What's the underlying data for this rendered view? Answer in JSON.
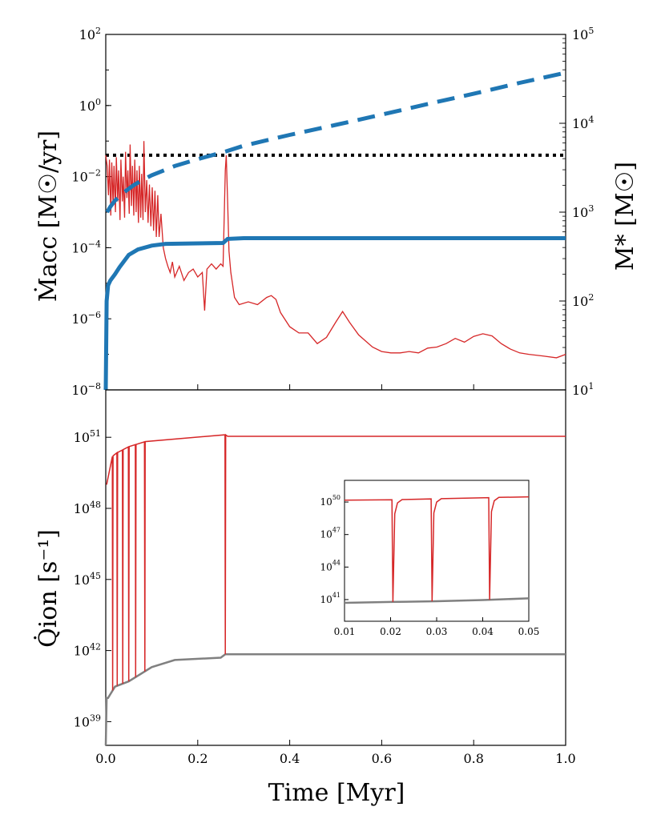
{
  "chart_data": [
    {
      "type": "line",
      "panel": "top",
      "ylabel": "Ṁacc [M☉/yr]",
      "y2label": "M* [M☉]",
      "xlim": [
        0,
        1.0
      ],
      "ylim": [
        1e-08,
        100
      ],
      "yscale": "log",
      "y2lim": [
        10,
        100000
      ],
      "y2scale": "log",
      "x_ticks": [
        "0.0",
        "0.2",
        "0.4",
        "0.6",
        "0.8",
        "1.0"
      ],
      "y_ticks": [
        {
          "base": "10",
          "exp": "−8"
        },
        {
          "base": "10",
          "exp": "−6"
        },
        {
          "base": "10",
          "exp": "−4"
        },
        {
          "base": "10",
          "exp": "−2"
        },
        {
          "base": "10",
          "exp": "0"
        },
        {
          "base": "10",
          "exp": "2"
        }
      ],
      "y2_ticks": [
        {
          "base": "10",
          "exp": "1"
        },
        {
          "base": "10",
          "exp": "2"
        },
        {
          "base": "10",
          "exp": "3"
        },
        {
          "base": "10",
          "exp": "4"
        },
        {
          "base": "10",
          "exp": "5"
        }
      ],
      "colors": {
        "accretion": "#d62728",
        "mass": "#1f77b4",
        "threshold": "#000000"
      },
      "threshold": 0.04,
      "accretion_rate": [
        [
          0.0,
          0.04
        ],
        [
          0.003,
          0.02
        ],
        [
          0.006,
          0.003
        ],
        [
          0.008,
          0.03
        ],
        [
          0.011,
          0.0008
        ],
        [
          0.013,
          0.025
        ],
        [
          0.016,
          0.0015
        ],
        [
          0.018,
          0.02
        ],
        [
          0.021,
          0.001
        ],
        [
          0.023,
          0.035
        ],
        [
          0.026,
          0.002
        ],
        [
          0.028,
          0.015
        ],
        [
          0.031,
          0.0006
        ],
        [
          0.033,
          0.03
        ],
        [
          0.036,
          0.002
        ],
        [
          0.038,
          0.01
        ],
        [
          0.041,
          0.0007
        ],
        [
          0.043,
          0.05
        ],
        [
          0.046,
          0.0025
        ],
        [
          0.048,
          0.015
        ],
        [
          0.051,
          0.0009
        ],
        [
          0.053,
          0.08
        ],
        [
          0.056,
          0.0015
        ],
        [
          0.058,
          0.02
        ],
        [
          0.061,
          0.0008
        ],
        [
          0.063,
          0.03
        ],
        [
          0.066,
          0.001
        ],
        [
          0.068,
          0.015
        ],
        [
          0.071,
          0.0005
        ],
        [
          0.073,
          0.02
        ],
        [
          0.076,
          0.0007
        ],
        [
          0.078,
          0.012
        ],
        [
          0.081,
          0.0006
        ],
        [
          0.083,
          0.1
        ],
        [
          0.086,
          0.001
        ],
        [
          0.089,
          0.008
        ],
        [
          0.092,
          0.0005
        ],
        [
          0.095,
          0.006
        ],
        [
          0.098,
          0.0004
        ],
        [
          0.101,
          0.005
        ],
        [
          0.104,
          0.0003
        ],
        [
          0.107,
          0.004
        ],
        [
          0.11,
          0.0002
        ],
        [
          0.113,
          0.003
        ],
        [
          0.116,
          0.0002
        ],
        [
          0.12,
          0.0009
        ],
        [
          0.125,
          0.0001
        ],
        [
          0.13,
          5e-05
        ],
        [
          0.135,
          3e-05
        ],
        [
          0.14,
          2e-05
        ],
        [
          0.145,
          4e-05
        ],
        [
          0.15,
          1.5e-05
        ],
        [
          0.16,
          3e-05
        ],
        [
          0.17,
          1.2e-05
        ],
        [
          0.18,
          2e-05
        ],
        [
          0.19,
          2.5e-05
        ],
        [
          0.2,
          1.5e-05
        ],
        [
          0.21,
          2e-05
        ],
        [
          0.215,
          1.7e-06
        ],
        [
          0.22,
          2.5e-05
        ],
        [
          0.23,
          3.5e-05
        ],
        [
          0.24,
          2.5e-05
        ],
        [
          0.25,
          3.5e-05
        ],
        [
          0.255,
          3e-05
        ],
        [
          0.26,
          0.015
        ],
        [
          0.262,
          0.04
        ],
        [
          0.265,
          0.002
        ],
        [
          0.268,
          8e-05
        ],
        [
          0.272,
          2e-05
        ],
        [
          0.28,
          4e-06
        ],
        [
          0.29,
          2.5e-06
        ],
        [
          0.31,
          3e-06
        ],
        [
          0.33,
          2.5e-06
        ],
        [
          0.35,
          4e-06
        ],
        [
          0.36,
          4.5e-06
        ],
        [
          0.37,
          3.5e-06
        ],
        [
          0.38,
          1.5e-06
        ],
        [
          0.4,
          6e-07
        ],
        [
          0.42,
          4e-07
        ],
        [
          0.44,
          4e-07
        ],
        [
          0.46,
          2e-07
        ],
        [
          0.48,
          3e-07
        ],
        [
          0.5,
          8e-07
        ],
        [
          0.515,
          1.6e-06
        ],
        [
          0.53,
          8e-07
        ],
        [
          0.55,
          3.5e-07
        ],
        [
          0.58,
          1.6e-07
        ],
        [
          0.6,
          1.2e-07
        ],
        [
          0.62,
          1.1e-07
        ],
        [
          0.64,
          1.1e-07
        ],
        [
          0.66,
          1.2e-07
        ],
        [
          0.68,
          1.1e-07
        ],
        [
          0.7,
          1.5e-07
        ],
        [
          0.72,
          1.6e-07
        ],
        [
          0.74,
          2e-07
        ],
        [
          0.76,
          2.8e-07
        ],
        [
          0.78,
          2.2e-07
        ],
        [
          0.8,
          3.2e-07
        ],
        [
          0.82,
          3.8e-07
        ],
        [
          0.84,
          3.3e-07
        ],
        [
          0.86,
          2e-07
        ],
        [
          0.88,
          1.4e-07
        ],
        [
          0.9,
          1.1e-07
        ],
        [
          0.92,
          1e-07
        ],
        [
          0.95,
          9e-08
        ],
        [
          0.98,
          8e-08
        ],
        [
          1.0,
          1e-07
        ]
      ],
      "stellar_mass_dashed": [
        [
          0.003,
          1000
        ],
        [
          0.01,
          1150
        ],
        [
          0.02,
          1350
        ],
        [
          0.04,
          1680
        ],
        [
          0.06,
          2000
        ],
        [
          0.08,
          2300
        ],
        [
          0.1,
          2600
        ],
        [
          0.15,
          3300
        ],
        [
          0.2,
          3950
        ],
        [
          0.26,
          4800
        ],
        [
          0.3,
          5600
        ],
        [
          0.4,
          7400
        ],
        [
          0.5,
          9600
        ],
        [
          0.6,
          12500
        ],
        [
          0.7,
          16500
        ],
        [
          0.8,
          21500
        ],
        [
          0.9,
          28500
        ],
        [
          1.0,
          37000
        ]
      ],
      "stellar_mass_solid": [
        [
          0.0,
          10
        ],
        [
          0.002,
          100
        ],
        [
          0.005,
          150
        ],
        [
          0.01,
          170
        ],
        [
          0.02,
          200
        ],
        [
          0.03,
          240
        ],
        [
          0.05,
          330
        ],
        [
          0.07,
          380
        ],
        [
          0.1,
          420
        ],
        [
          0.13,
          440
        ],
        [
          0.2,
          445
        ],
        [
          0.255,
          450
        ],
        [
          0.265,
          500
        ],
        [
          0.3,
          510
        ],
        [
          0.5,
          510
        ],
        [
          0.8,
          510
        ],
        [
          1.0,
          510
        ]
      ]
    },
    {
      "type": "line",
      "panel": "bottom",
      "xlabel": "Time [Myr]",
      "ylabel": "Q̇ion [s⁻¹]",
      "xlim": [
        0,
        1.0
      ],
      "ylim": [
        1e+38,
        1e+53
      ],
      "yscale": "log",
      "x_ticks": [
        "0.0",
        "0.2",
        "0.4",
        "0.6",
        "0.8",
        "1.0"
      ],
      "y_ticks": [
        {
          "base": "10",
          "exp": "39"
        },
        {
          "base": "10",
          "exp": "42"
        },
        {
          "base": "10",
          "exp": "45"
        },
        {
          "base": "10",
          "exp": "48"
        },
        {
          "base": "10",
          "exp": "51"
        }
      ],
      "colors": {
        "red": "#d62728",
        "gray": "#808080"
      },
      "gray_baseline": [
        [
          0.0,
          1e+38
        ],
        [
          0.002,
          1e+40
        ],
        [
          0.005,
          1e+40
        ],
        [
          0.02,
          3e+40
        ],
        [
          0.05,
          5e+40
        ],
        [
          0.1,
          2e+41
        ],
        [
          0.15,
          4e+41
        ],
        [
          0.25,
          5e+41
        ],
        [
          0.26,
          7e+41
        ],
        [
          0.3,
          7e+41
        ],
        [
          0.6,
          7e+41
        ],
        [
          1.0,
          7e+41
        ]
      ],
      "red_upper": [
        [
          0.002,
          1e+49
        ],
        [
          0.005,
          1e+50
        ],
        [
          0.02,
          2e+50
        ],
        [
          0.05,
          4e+50
        ],
        [
          0.1,
          8e+50
        ],
        [
          0.15,
          1e+51
        ],
        [
          0.25,
          1e+51
        ],
        [
          0.26,
          1.3e+51
        ],
        [
          0.265,
          1.1e+51
        ],
        [
          0.3,
          1.1e+51
        ],
        [
          1.0,
          1.1e+51
        ]
      ],
      "red_drops": [
        0.015,
        0.025,
        0.037,
        0.05,
        0.065,
        0.085,
        0.26
      ],
      "inset": {
        "xlim": [
          0.01,
          0.05
        ],
        "ylim": [
          1e+39,
          1e+52
        ],
        "x_ticks": [
          "0.01",
          "0.02",
          "0.03",
          "0.04",
          "0.05"
        ],
        "y_ticks": [
          {
            "base": "10",
            "exp": "41"
          },
          {
            "base": "10",
            "exp": "44"
          },
          {
            "base": "10",
            "exp": "47"
          },
          {
            "base": "10",
            "exp": "50"
          }
        ],
        "gray": [
          [
            0.01,
            5e+40
          ],
          [
            0.02,
            6e+40
          ],
          [
            0.03,
            7e+40
          ],
          [
            0.04,
            9e+40
          ],
          [
            0.05,
            1.3e+41
          ]
        ],
        "upper": [
          [
            0.01,
            1.5e+50
          ],
          [
            0.02,
            1.6e+50
          ],
          [
            0.03,
            2e+50
          ],
          [
            0.04,
            2.5e+50
          ],
          [
            0.05,
            3e+50
          ]
        ],
        "drops": [
          0.0205,
          0.029,
          0.0415
        ]
      }
    }
  ]
}
